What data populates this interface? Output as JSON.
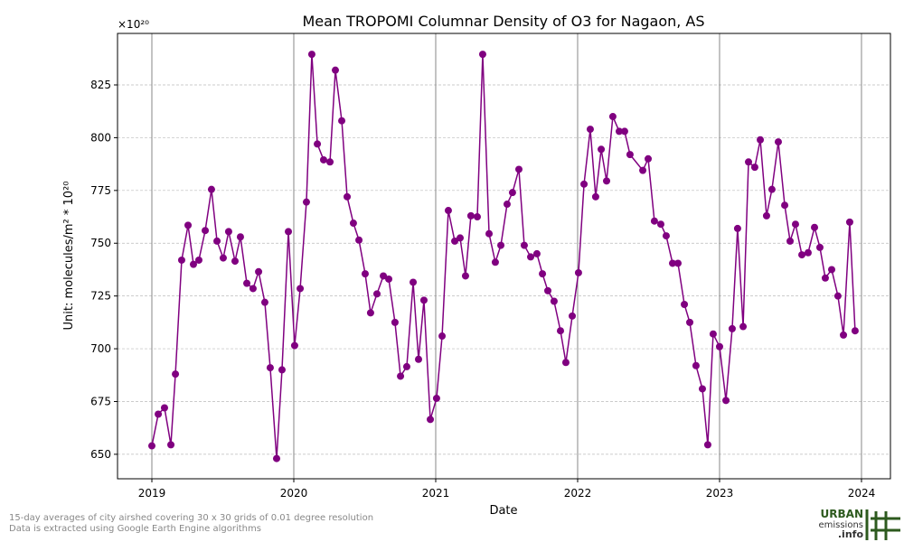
{
  "chart_data": {
    "type": "line",
    "title": "Mean TROPOMI Columnar Density of O3 for Nagaon, AS",
    "x_label": "Date",
    "y_label": "Unit: molecules/m² * 10²⁰",
    "y_offset_label": "×10²⁰",
    "xlim": [
      2018.758,
      2024.204
    ],
    "xticks": [
      2019,
      2020,
      2021,
      2022,
      2023,
      2024
    ],
    "ylim": [
      638.4,
      849.4
    ],
    "yticks": [
      650,
      675,
      700,
      725,
      750,
      775,
      800,
      825
    ],
    "grid": true,
    "x": [
      2019.0,
      2019.045,
      2019.089,
      2019.134,
      2019.166,
      2019.21,
      2019.255,
      2019.293,
      2019.331,
      2019.376,
      2019.42,
      2019.459,
      2019.503,
      2019.541,
      2019.586,
      2019.624,
      2019.669,
      2019.713,
      2019.752,
      2019.796,
      2019.834,
      2019.879,
      2019.917,
      2019.962,
      2020.006,
      2020.045,
      2020.089,
      2020.127,
      2020.166,
      2020.21,
      2020.255,
      2020.293,
      2020.338,
      2020.376,
      2020.42,
      2020.459,
      2020.503,
      2020.541,
      2020.586,
      2020.631,
      2020.669,
      2020.713,
      2020.752,
      2020.796,
      2020.841,
      2020.879,
      2020.917,
      2020.962,
      2021.006,
      2021.045,
      2021.089,
      2021.134,
      2021.172,
      2021.21,
      2021.248,
      2021.293,
      2021.331,
      2021.376,
      2021.42,
      2021.459,
      2021.503,
      2021.541,
      2021.586,
      2021.624,
      2021.669,
      2021.713,
      2021.752,
      2021.79,
      2021.834,
      2021.879,
      2021.917,
      2021.962,
      2022.006,
      2022.045,
      2022.089,
      2022.127,
      2022.166,
      2022.204,
      2022.248,
      2022.293,
      2022.331,
      2022.369,
      2022.459,
      2022.497,
      2022.541,
      2022.586,
      2022.624,
      2022.669,
      2022.707,
      2022.752,
      2022.79,
      2022.834,
      2022.879,
      2022.917,
      2022.955,
      2023.0,
      2023.045,
      2023.089,
      2023.127,
      2023.166,
      2023.204,
      2023.248,
      2023.287,
      2023.331,
      2023.369,
      2023.414,
      2023.459,
      2023.497,
      2023.535,
      2023.58,
      2023.624,
      2023.669,
      2023.707,
      2023.745,
      2023.79,
      2023.834,
      2023.873,
      2023.917,
      2023.955
    ],
    "series": [
      {
        "color": "#800080",
        "values": [
          654,
          669,
          672,
          654.5,
          688,
          742,
          758.5,
          740,
          742,
          756,
          775.5,
          751,
          743,
          755.5,
          741.5,
          753,
          731,
          728.5,
          736.5,
          722,
          691,
          648,
          690,
          755.5,
          701.5,
          728.5,
          769.5,
          839.5,
          797,
          789.5,
          788.5,
          832,
          808,
          772,
          759.5,
          751.5,
          735.5,
          717,
          726,
          734.5,
          733,
          712.5,
          687,
          691.5,
          731.5,
          695,
          723,
          666.5,
          676.5,
          706,
          765.5,
          751,
          752.5,
          734.5,
          763,
          762.5,
          839.5,
          754.5,
          741,
          749,
          768.5,
          774,
          785,
          749,
          743.5,
          745,
          735.5,
          727.5,
          722.5,
          708.5,
          693.5,
          715.5,
          736,
          778,
          804,
          772,
          794.5,
          779.5,
          810,
          803,
          803,
          792,
          784.5,
          790,
          760.5,
          759,
          753.5,
          740.5,
          740.5,
          721,
          712.5,
          692,
          681,
          654.5,
          707,
          701,
          675.5,
          709.5,
          757,
          710.5,
          788.5,
          786,
          799,
          763,
          775.5,
          798,
          768,
          751,
          759,
          744.5,
          745.5,
          757.5,
          748,
          733.5,
          737.5,
          725,
          706.5,
          760,
          708.5
        ]
      }
    ]
  },
  "footnote": [
    "15-day averages of city airshed covering 30 x 30 grids of 0.01 degree resolution",
    "Data is extracted using Google Earth Engine algorithms"
  ],
  "logo": {
    "line1": "URBAN",
    "line2": "emissions",
    "line3": ".info"
  }
}
